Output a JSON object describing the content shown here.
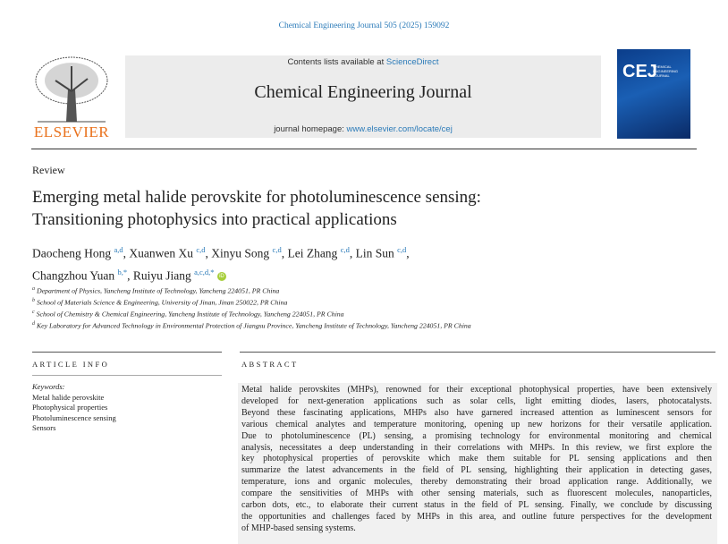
{
  "journal_ref": "Chemical Engineering Journal 505 (2025) 159092",
  "banner": {
    "contents_prefix": "Contents lists available at ",
    "contents_link": "ScienceDirect",
    "journal_name": "Chemical Engineering Journal",
    "homepage_prefix": "journal homepage: ",
    "homepage_link": "www.elsevier.com/locate/cej"
  },
  "publisher": "ELSEVIER",
  "cover": {
    "abbr": "CEJ",
    "subtitle": "CHEMICAL ENGINEERING JOURNAL"
  },
  "article_type": "Review",
  "title_lines": [
    "Emerging metal halide perovskite for photoluminescence sensing:",
    "Transitioning photophysics into practical applications"
  ],
  "authors": [
    {
      "name": "Daocheng Hong",
      "sup": "a,d"
    },
    {
      "name": "Xuanwen Xu",
      "sup": "c,d"
    },
    {
      "name": "Xinyu Song",
      "sup": "c,d"
    },
    {
      "name": "Lei Zhang",
      "sup": "c,d"
    },
    {
      "name": "Lin Sun",
      "sup": "c,d"
    },
    {
      "name": "Changzhou Yuan",
      "sup": "b,*"
    },
    {
      "name": "Ruiyu Jiang",
      "sup": "a,c,d,*"
    }
  ],
  "affiliations": [
    {
      "sup": "a",
      "text": "Department of Physics, Yancheng Institute of Technology, Yancheng 224051, PR China"
    },
    {
      "sup": "b",
      "text": "School of Materials Science & Engineering, University of Jinan, Jinan 250022, PR China"
    },
    {
      "sup": "c",
      "text": "School of Chemistry & Chemical Engineering, Yancheng Institute of Technology, Yancheng 224051, PR China"
    },
    {
      "sup": "d",
      "text": "Key Laboratory for Advanced Technology in Environmental Protection of Jiangsu Province, Yancheng Institute of Technology, Yancheng 224051, PR China"
    }
  ],
  "article_info": {
    "heading": "ARTICLE INFO",
    "keywords_label": "Keywords:",
    "keywords": [
      "Metal halide perovskite",
      "Photophysical properties",
      "Photoluminescence sensing",
      "Sensors"
    ]
  },
  "abstract": {
    "heading": "ABSTRACT",
    "lines": [
      "Metal halide perovskites (MHPs), renowned for their exceptional photophysical properties, have been extensively",
      "developed for next-generation applications such as solar cells, light emitting diodes, lasers, photocatalysts.",
      "Beyond these fascinating applications, MHPs also have garnered increased attention as luminescent sensors for",
      "various chemical analytes and temperature monitoring, opening up new horizons for their versatile application.",
      "Due to photoluminescence (PL) sensing, a promising technology for environmental monitoring and chemical",
      "analysis, necessitates a deep understanding in their correlations with MHPs. In this review, we first explore the",
      "key photophysical properties of perovskite which make them suitable for PL sensing applications and then",
      "summarize the latest advancements in the field of PL sensing, highlighting their application in detecting gases,",
      "temperature, ions and organic molecules, thereby demonstrating their broad application range. Additionally, we",
      "compare the sensitivities of MHPs with other sensing materials, such as fluorescent molecules, nanoparticles,",
      "carbon dots, etc., to elaborate their current status in the field of PL sensing. Finally, we conclude by discussing",
      "the opportunities and challenges faced by MHPs in this area, and outline future perspectives for the development",
      "of MHP-based sensing systems."
    ]
  }
}
